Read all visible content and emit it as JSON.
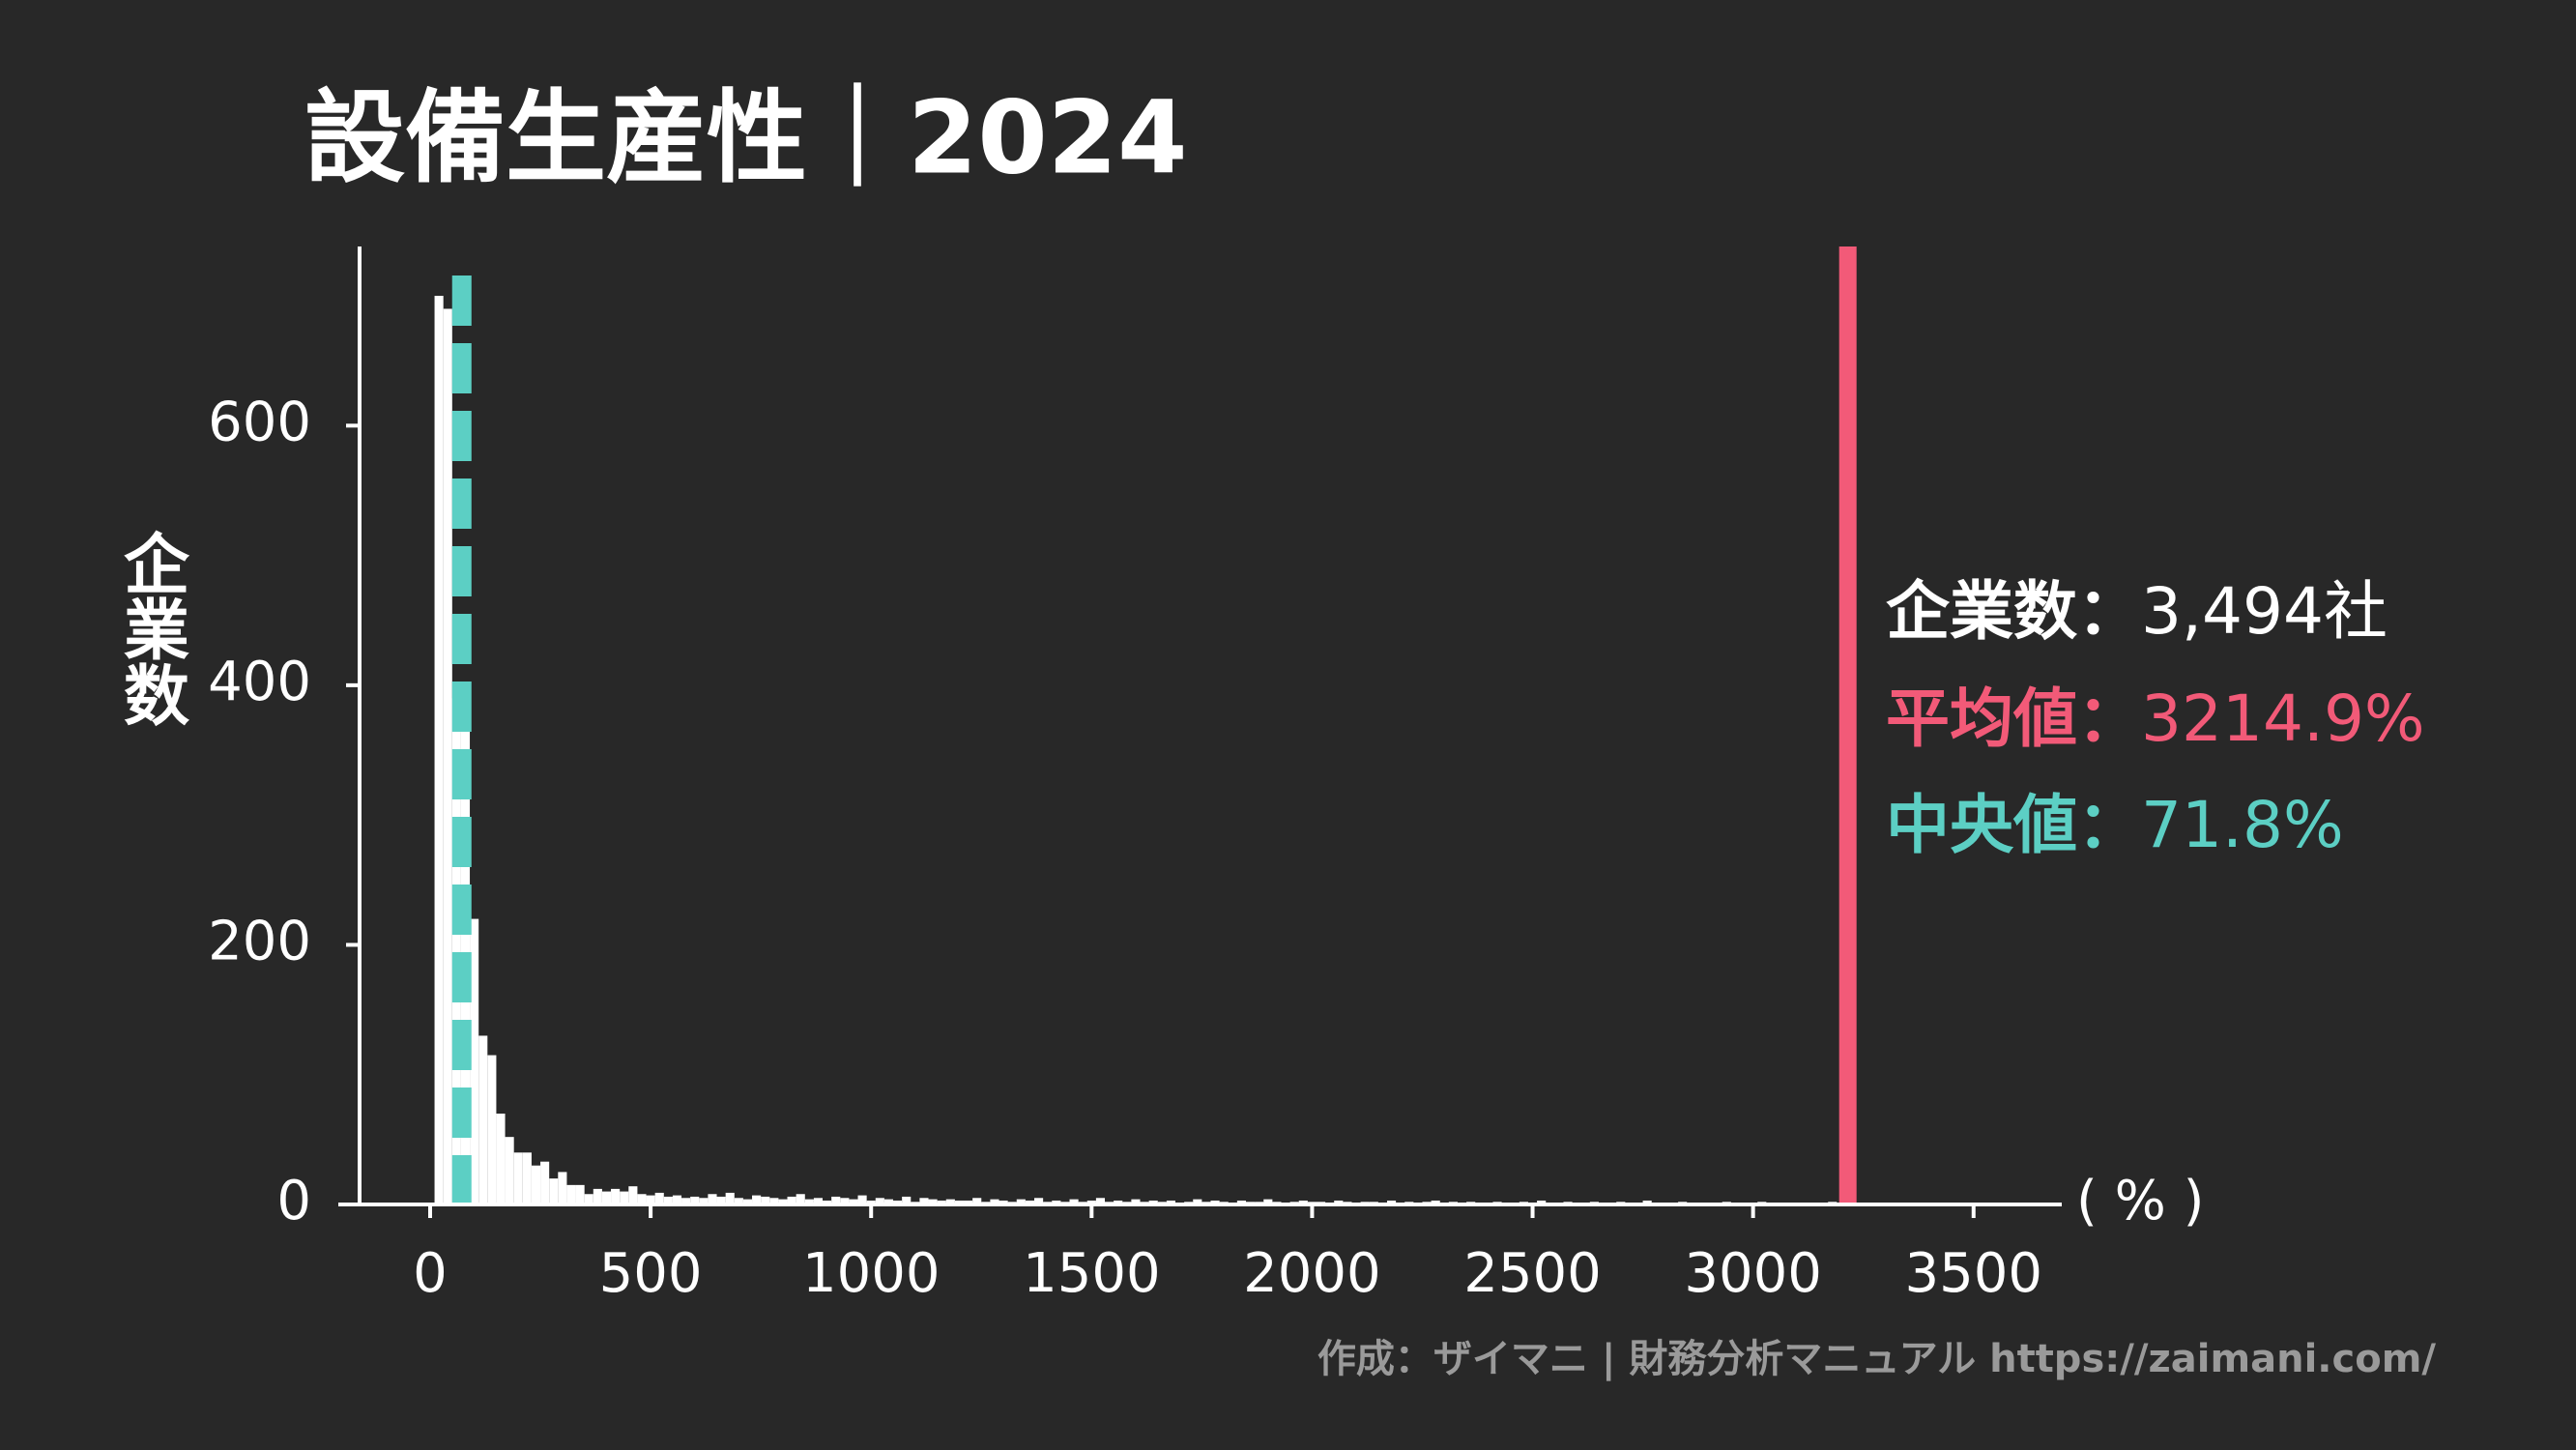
{
  "chart_data": {
    "type": "histogram",
    "title": "設備生産性｜2024",
    "ylabel": "企業数",
    "xlabel": "( % )",
    "color": "#ffffff",
    "bins": [
      10,
      30,
      50,
      70,
      90,
      110,
      130,
      150,
      170,
      190,
      210,
      230,
      250,
      270,
      290,
      310,
      330,
      350,
      370,
      390,
      410,
      430,
      450,
      470,
      490,
      510,
      530,
      550,
      570,
      590,
      610,
      630,
      650,
      670,
      690,
      710,
      730,
      750,
      770,
      790,
      810,
      830,
      850,
      870,
      890,
      910,
      930,
      950,
      970,
      990,
      1010,
      1030,
      1050,
      1070,
      1090,
      1110,
      1130,
      1150,
      1170,
      1190,
      1210,
      1230,
      1250,
      1270,
      1290,
      1310,
      1330,
      1350,
      1370,
      1390,
      1410,
      1430,
      1450,
      1470,
      1490,
      1510,
      1530,
      1550,
      1570,
      1590,
      1610,
      1630,
      1650,
      1670,
      1690,
      1710,
      1730,
      1750,
      1770,
      1790,
      1810,
      1830,
      1850,
      1870,
      1890,
      1910,
      1930,
      1950,
      1970,
      1990,
      2010,
      2030,
      2050,
      2070,
      2090,
      2110,
      2130,
      2150,
      2170,
      2190,
      2210,
      2230,
      2250,
      2270,
      2290,
      2310,
      2330,
      2350,
      2370,
      2390,
      2410,
      2430,
      2450,
      2470,
      2490,
      2510,
      2530,
      2550,
      2570,
      2590,
      2610,
      2630,
      2650,
      2670,
      2690,
      2710,
      2730,
      2750,
      2770,
      2790,
      2810,
      2830,
      2850,
      2870,
      2890,
      2910,
      2930,
      2950,
      2970,
      2990,
      3010,
      3030,
      3050,
      3070,
      3090,
      3110,
      3130,
      3150,
      3170,
      3190,
      3210,
      3230,
      3250,
      3270,
      3290,
      3310,
      3330,
      3350,
      3370,
      3390,
      3410,
      3430,
      3450,
      3470,
      3490,
      3510,
      3530,
      3550,
      3570,
      3590,
      3610
    ],
    "counts": [
      700,
      690,
      390,
      385,
      220,
      130,
      115,
      70,
      52,
      40,
      40,
      30,
      33,
      20,
      25,
      15,
      15,
      8,
      12,
      10,
      12,
      10,
      14,
      8,
      7,
      9,
      6,
      7,
      5,
      6,
      5,
      8,
      6,
      9,
      5,
      4,
      7,
      6,
      5,
      4,
      6,
      8,
      4,
      5,
      3,
      6,
      5,
      4,
      7,
      3,
      5,
      4,
      3,
      6,
      2,
      5,
      4,
      3,
      4,
      3,
      3,
      5,
      2,
      4,
      3,
      2,
      4,
      3,
      5,
      2,
      3,
      2,
      4,
      2,
      3,
      5,
      2,
      3,
      2,
      4,
      2,
      3,
      2,
      3,
      1,
      2,
      4,
      2,
      3,
      2,
      1,
      3,
      2,
      2,
      4,
      2,
      1,
      2,
      3,
      2,
      2,
      1,
      3,
      2,
      1,
      2,
      2,
      1,
      3,
      1,
      2,
      1,
      2,
      3,
      1,
      2,
      1,
      2,
      1,
      1,
      2,
      1,
      1,
      2,
      1,
      3,
      1,
      1,
      2,
      1,
      1,
      2,
      1,
      1,
      2,
      1,
      1,
      3,
      1,
      1,
      1,
      2,
      1,
      0,
      1,
      1,
      2,
      1,
      0,
      1,
      2,
      1,
      1,
      0,
      1,
      1,
      0,
      1,
      2,
      0,
      1,
      0,
      1,
      0,
      0,
      1,
      0,
      0,
      1,
      0,
      1,
      0,
      0,
      0,
      1,
      0,
      0,
      0,
      1,
      0
    ],
    "xlim": [
      -160,
      3700
    ],
    "ylim": [
      0,
      738
    ],
    "xticks": [
      0,
      500,
      1000,
      1500,
      2000,
      2500,
      3000,
      3500
    ],
    "yticks": [
      0,
      200,
      400,
      600
    ],
    "mean": {
      "label": "平均値：",
      "value": 3214.9,
      "value_label": "3214.9%",
      "color": "#f25a78"
    },
    "median": {
      "label": "中央値：",
      "value": 71.8,
      "value_label": "71.8%",
      "color": "#5ccfc4"
    },
    "count": {
      "label": "企業数：",
      "value": 3494,
      "value_label": "3,494社",
      "color": "#ffffff"
    },
    "credit": "作成：ザイマニ | 財務分析マニュアル https://zaimani.com/"
  }
}
